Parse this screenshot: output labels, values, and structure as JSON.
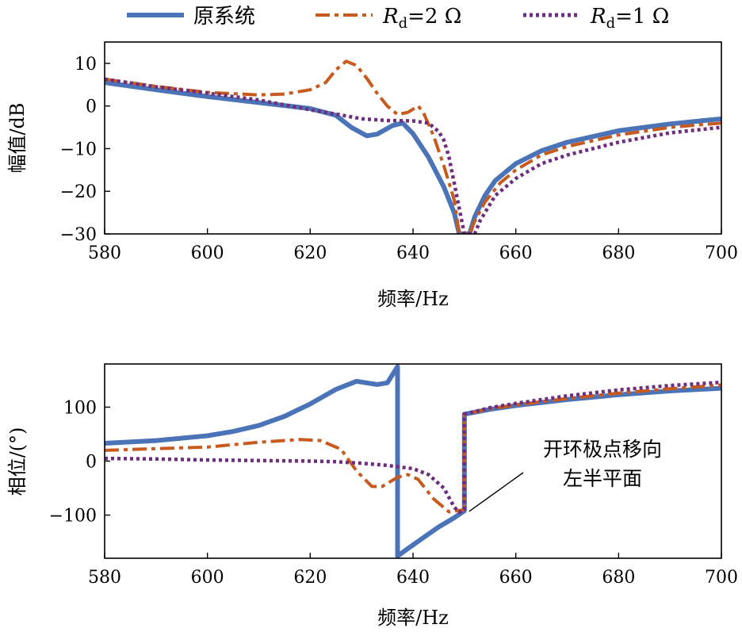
{
  "legend": {
    "placement": "top",
    "entries": [
      {
        "label": "原系统",
        "color": "#4a73b8",
        "style": "solid"
      },
      {
        "label_main": "R",
        "label_sub": "d",
        "label_rest": "=2 Ω",
        "color": "#c85a1e",
        "style": "dashdot"
      },
      {
        "label_main": "R",
        "label_sub": "d",
        "label_rest": "=1 Ω",
        "color": "#6e2d7e",
        "style": "dotted"
      }
    ]
  },
  "chart_data": [
    {
      "type": "line",
      "id": "magnitude",
      "xlabel": "频率/Hz",
      "ylabel": "幅值/dB",
      "xlim": [
        580,
        700
      ],
      "ylim": [
        -30,
        15
      ],
      "xticks": [
        580,
        600,
        620,
        640,
        660,
        680,
        700
      ],
      "yticks": [
        -30,
        -20,
        -10,
        0,
        10
      ],
      "grid": false,
      "series": [
        {
          "key": "orig",
          "color": "#4a73b8",
          "style": "solid",
          "points": [
            [
              580,
              5.5
            ],
            [
              590,
              3.8
            ],
            [
              600,
              2.2
            ],
            [
              610,
              0.8
            ],
            [
              620,
              -0.6
            ],
            [
              625,
              -2.2
            ],
            [
              628,
              -5.0
            ],
            [
              631,
              -7.0
            ],
            [
              633,
              -6.6
            ],
            [
              636,
              -4.6
            ],
            [
              638,
              -4.0
            ],
            [
              640,
              -6.5
            ],
            [
              643,
              -12.0
            ],
            [
              646,
              -19.0
            ],
            [
              648,
              -25.0
            ],
            [
              649,
              -30.0
            ],
            [
              651,
              -30.0
            ],
            [
              652,
              -26.0
            ],
            [
              654,
              -21.0
            ],
            [
              656,
              -17.5
            ],
            [
              660,
              -13.5
            ],
            [
              665,
              -10.5
            ],
            [
              670,
              -8.5
            ],
            [
              680,
              -5.8
            ],
            [
              690,
              -4.2
            ],
            [
              700,
              -3.0
            ]
          ]
        },
        {
          "key": "rd2",
          "color": "#c85a1e",
          "style": "dashdot",
          "points": [
            [
              580,
              6.3
            ],
            [
              590,
              4.6
            ],
            [
              600,
              3.2
            ],
            [
              610,
              2.6
            ],
            [
              615,
              2.8
            ],
            [
              620,
              3.8
            ],
            [
              623,
              5.5
            ],
            [
              625,
              8.5
            ],
            [
              627,
              10.5
            ],
            [
              629,
              9.5
            ],
            [
              631,
              6.5
            ],
            [
              633,
              3.0
            ],
            [
              635,
              0.0
            ],
            [
              637,
              -2.0
            ],
            [
              639,
              -1.5
            ],
            [
              641,
              0.0
            ],
            [
              642,
              -1.5
            ],
            [
              644,
              -7.0
            ],
            [
              646,
              -14.0
            ],
            [
              648,
              -22.0
            ],
            [
              649,
              -30.0
            ],
            [
              651,
              -30.0
            ],
            [
              652,
              -27.0
            ],
            [
              654,
              -22.5
            ],
            [
              657,
              -18.0
            ],
            [
              660,
              -15.0
            ],
            [
              665,
              -11.5
            ],
            [
              670,
              -9.5
            ],
            [
              680,
              -6.8
            ],
            [
              690,
              -5.0
            ],
            [
              700,
              -4.0
            ]
          ]
        },
        {
          "key": "rd1",
          "color": "#6e2d7e",
          "style": "dotted",
          "points": [
            [
              580,
              6.3
            ],
            [
              590,
              4.5
            ],
            [
              600,
              3.0
            ],
            [
              610,
              1.4
            ],
            [
              620,
              -0.9
            ],
            [
              625,
              -1.9
            ],
            [
              630,
              -3.0
            ],
            [
              635,
              -3.4
            ],
            [
              640,
              -3.5
            ],
            [
              643,
              -4.0
            ],
            [
              645,
              -6.0
            ],
            [
              646,
              -8.0
            ],
            [
              647,
              -12.0
            ],
            [
              648,
              -18.0
            ],
            [
              649,
              -24.0
            ],
            [
              650,
              -30.0
            ],
            [
              652,
              -30.0
            ],
            [
              653,
              -27.0
            ],
            [
              656,
              -21.0
            ],
            [
              660,
              -17.0
            ],
            [
              665,
              -13.5
            ],
            [
              670,
              -11.5
            ],
            [
              680,
              -8.5
            ],
            [
              690,
              -6.3
            ],
            [
              700,
              -5.0
            ]
          ]
        }
      ]
    },
    {
      "type": "line",
      "id": "phase",
      "xlabel": "频率/Hz",
      "ylabel": "相位/(°)",
      "xlim": [
        580,
        700
      ],
      "ylim": [
        -180,
        180
      ],
      "xticks": [
        580,
        600,
        620,
        640,
        660,
        680,
        700
      ],
      "yticks": [
        -100,
        0,
        100
      ],
      "grid": false,
      "series": [
        {
          "key": "orig",
          "color": "#4a73b8",
          "style": "solid",
          "points": [
            [
              580,
              33
            ],
            [
              590,
              38
            ],
            [
              600,
              47
            ],
            [
              605,
              55
            ],
            [
              610,
              66
            ],
            [
              615,
              83
            ],
            [
              620,
              106
            ],
            [
              625,
              133
            ],
            [
              629,
              148
            ],
            [
              633,
              142
            ],
            [
              635,
              145
            ],
            [
              637,
              175
            ],
            [
              637,
              -176
            ],
            [
              639,
              -162
            ],
            [
              642,
              -142
            ],
            [
              645,
              -122
            ],
            [
              648,
              -105
            ],
            [
              650,
              -92
            ],
            [
              650,
              87
            ],
            [
              655,
              96
            ],
            [
              660,
              103
            ],
            [
              670,
              114
            ],
            [
              680,
              123
            ],
            [
              690,
              130
            ],
            [
              700,
              135
            ]
          ]
        },
        {
          "key": "rd2",
          "color": "#c85a1e",
          "style": "dashdot",
          "points": [
            [
              580,
              20
            ],
            [
              590,
              23
            ],
            [
              600,
              26
            ],
            [
              610,
              35
            ],
            [
              618,
              40
            ],
            [
              622,
              38
            ],
            [
              626,
              22
            ],
            [
              629,
              -18
            ],
            [
              632,
              -47
            ],
            [
              634,
              -47
            ],
            [
              637,
              -30
            ],
            [
              639,
              -25
            ],
            [
              641,
              -34
            ],
            [
              644,
              -70
            ],
            [
              647,
              -94
            ],
            [
              650,
              -90
            ],
            [
              650,
              87
            ],
            [
              655,
              97
            ],
            [
              660,
              104
            ],
            [
              670,
              116
            ],
            [
              680,
              126
            ],
            [
              690,
              134
            ],
            [
              700,
              141
            ]
          ]
        },
        {
          "key": "rd1",
          "color": "#6e2d7e",
          "style": "dotted",
          "points": [
            [
              580,
              5
            ],
            [
              590,
              4
            ],
            [
              600,
              2
            ],
            [
              610,
              1
            ],
            [
              620,
              0
            ],
            [
              625,
              -1
            ],
            [
              630,
              -4
            ],
            [
              635,
              -8
            ],
            [
              640,
              -14
            ],
            [
              643,
              -25
            ],
            [
              646,
              -50
            ],
            [
              648,
              -85
            ],
            [
              649,
              -95
            ],
            [
              650,
              -90
            ],
            [
              650,
              87
            ],
            [
              655,
              99
            ],
            [
              660,
              107
            ],
            [
              670,
              121
            ],
            [
              680,
              132
            ],
            [
              690,
              140
            ],
            [
              700,
              146
            ]
          ]
        }
      ],
      "annotations": [
        {
          "lines": [
            "开环极点移向",
            "左半平面"
          ],
          "arrow_to": [
            650,
            -55
          ]
        }
      ]
    }
  ]
}
